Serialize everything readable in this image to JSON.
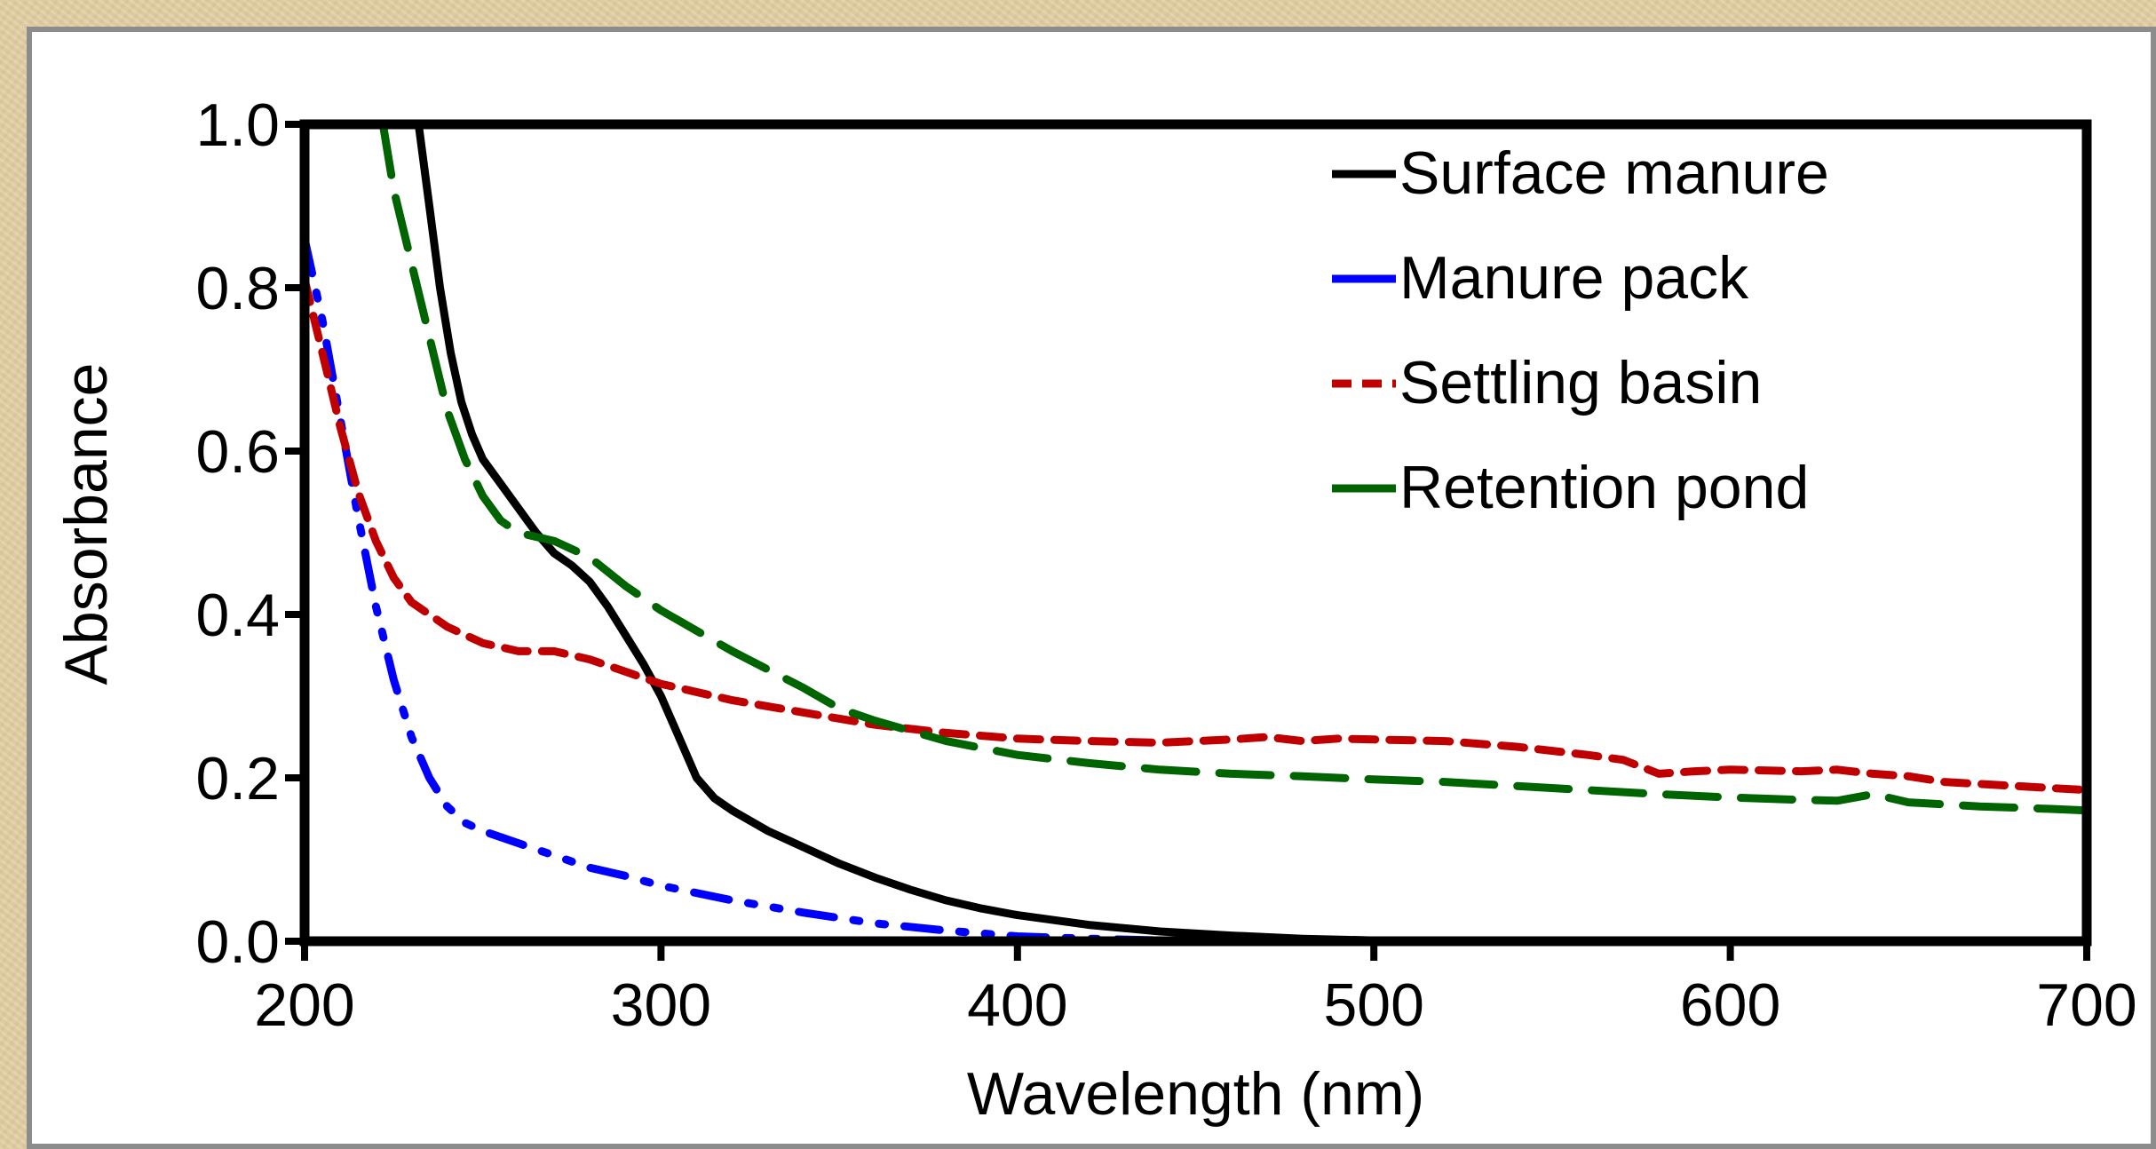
{
  "chart_data": {
    "type": "line",
    "title": "",
    "xlabel": "Wavelength (nm)",
    "ylabel": "Absorbance",
    "xlim": [
      200,
      700
    ],
    "ylim": [
      0.0,
      1.0
    ],
    "x_ticks": [
      "200",
      "300",
      "400",
      "500",
      "600",
      "700"
    ],
    "y_ticks": [
      "0.0",
      "0.2",
      "0.4",
      "0.6",
      "0.8",
      "1.0"
    ],
    "grid": false,
    "legend_position": "top-right",
    "series": [
      {
        "name": "Surface manure",
        "color": "#000000",
        "dash": "solid",
        "points": [
          [
            232,
            1.0
          ],
          [
            235,
            0.9
          ],
          [
            238,
            0.8
          ],
          [
            241,
            0.72
          ],
          [
            244,
            0.66
          ],
          [
            247,
            0.62
          ],
          [
            250,
            0.59
          ],
          [
            255,
            0.56
          ],
          [
            260,
            0.53
          ],
          [
            265,
            0.5
          ],
          [
            270,
            0.475
          ],
          [
            275,
            0.46
          ],
          [
            280,
            0.44
          ],
          [
            285,
            0.41
          ],
          [
            290,
            0.375
          ],
          [
            295,
            0.34
          ],
          [
            300,
            0.3
          ],
          [
            305,
            0.25
          ],
          [
            310,
            0.2
          ],
          [
            315,
            0.175
          ],
          [
            320,
            0.16
          ],
          [
            330,
            0.135
          ],
          [
            340,
            0.115
          ],
          [
            350,
            0.095
          ],
          [
            360,
            0.078
          ],
          [
            370,
            0.063
          ],
          [
            380,
            0.05
          ],
          [
            390,
            0.04
          ],
          [
            400,
            0.032
          ],
          [
            420,
            0.02
          ],
          [
            440,
            0.012
          ],
          [
            460,
            0.007
          ],
          [
            480,
            0.003
          ],
          [
            500,
            0.001
          ],
          [
            550,
            0.0
          ],
          [
            600,
            0.0
          ],
          [
            700,
            0.0
          ]
        ]
      },
      {
        "name": "Manure pack",
        "color": "#0000ff",
        "dash": "dash-dot-dot",
        "points": [
          [
            200,
            0.86
          ],
          [
            205,
            0.76
          ],
          [
            210,
            0.64
          ],
          [
            215,
            0.52
          ],
          [
            220,
            0.41
          ],
          [
            225,
            0.32
          ],
          [
            230,
            0.25
          ],
          [
            235,
            0.2
          ],
          [
            240,
            0.165
          ],
          [
            245,
            0.145
          ],
          [
            250,
            0.135
          ],
          [
            260,
            0.12
          ],
          [
            270,
            0.105
          ],
          [
            280,
            0.09
          ],
          [
            290,
            0.08
          ],
          [
            300,
            0.068
          ],
          [
            320,
            0.05
          ],
          [
            340,
            0.035
          ],
          [
            360,
            0.022
          ],
          [
            380,
            0.013
          ],
          [
            400,
            0.006
          ],
          [
            420,
            0.003
          ],
          [
            440,
            0.001
          ],
          [
            460,
            0.0
          ],
          [
            500,
            0.0
          ],
          [
            550,
            0.0
          ],
          [
            600,
            0.0
          ],
          [
            650,
            0.0
          ],
          [
            700,
            0.0
          ]
        ]
      },
      {
        "name": "Settling basin",
        "color": "#c00000",
        "dash": "dash",
        "points": [
          [
            200,
            0.81
          ],
          [
            205,
            0.72
          ],
          [
            210,
            0.63
          ],
          [
            215,
            0.55
          ],
          [
            220,
            0.49
          ],
          [
            225,
            0.445
          ],
          [
            230,
            0.415
          ],
          [
            240,
            0.385
          ],
          [
            250,
            0.365
          ],
          [
            260,
            0.355
          ],
          [
            270,
            0.355
          ],
          [
            280,
            0.345
          ],
          [
            290,
            0.33
          ],
          [
            300,
            0.315
          ],
          [
            320,
            0.295
          ],
          [
            340,
            0.28
          ],
          [
            360,
            0.265
          ],
          [
            380,
            0.255
          ],
          [
            400,
            0.248
          ],
          [
            420,
            0.245
          ],
          [
            440,
            0.243
          ],
          [
            460,
            0.247
          ],
          [
            470,
            0.25
          ],
          [
            480,
            0.245
          ],
          [
            490,
            0.248
          ],
          [
            500,
            0.247
          ],
          [
            520,
            0.245
          ],
          [
            540,
            0.238
          ],
          [
            560,
            0.228
          ],
          [
            570,
            0.222
          ],
          [
            580,
            0.205
          ],
          [
            590,
            0.208
          ],
          [
            600,
            0.21
          ],
          [
            620,
            0.208
          ],
          [
            630,
            0.21
          ],
          [
            640,
            0.205
          ],
          [
            650,
            0.202
          ],
          [
            660,
            0.195
          ],
          [
            680,
            0.19
          ],
          [
            700,
            0.185
          ]
        ]
      },
      {
        "name": "Retention pond",
        "color": "#006400",
        "dash": "long-dash",
        "points": [
          [
            222,
            1.0
          ],
          [
            225,
            0.92
          ],
          [
            230,
            0.83
          ],
          [
            235,
            0.74
          ],
          [
            240,
            0.65
          ],
          [
            245,
            0.59
          ],
          [
            250,
            0.545
          ],
          [
            255,
            0.515
          ],
          [
            260,
            0.5
          ],
          [
            270,
            0.49
          ],
          [
            280,
            0.47
          ],
          [
            290,
            0.435
          ],
          [
            300,
            0.405
          ],
          [
            320,
            0.355
          ],
          [
            340,
            0.31
          ],
          [
            350,
            0.285
          ],
          [
            360,
            0.27
          ],
          [
            380,
            0.245
          ],
          [
            400,
            0.228
          ],
          [
            420,
            0.218
          ],
          [
            440,
            0.21
          ],
          [
            460,
            0.205
          ],
          [
            480,
            0.202
          ],
          [
            500,
            0.198
          ],
          [
            520,
            0.195
          ],
          [
            540,
            0.19
          ],
          [
            560,
            0.185
          ],
          [
            580,
            0.18
          ],
          [
            600,
            0.176
          ],
          [
            620,
            0.173
          ],
          [
            630,
            0.172
          ],
          [
            640,
            0.18
          ],
          [
            650,
            0.17
          ],
          [
            670,
            0.165
          ],
          [
            690,
            0.162
          ],
          [
            700,
            0.16
          ]
        ]
      }
    ]
  }
}
